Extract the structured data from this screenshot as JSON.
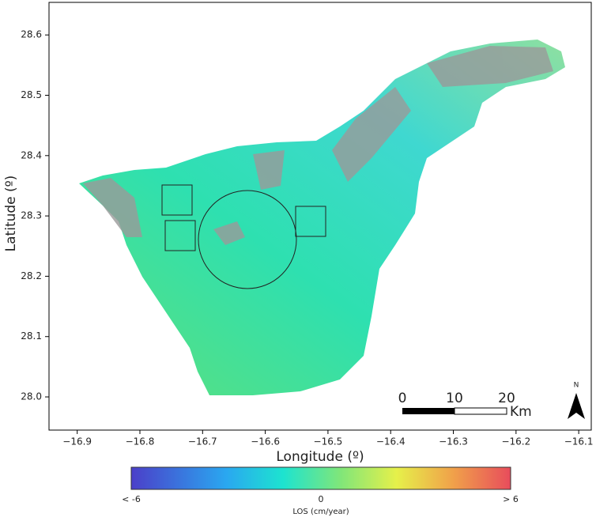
{
  "map": {
    "xlim": [
      -16.945,
      -16.08
    ],
    "ylim": [
      27.945,
      28.654
    ],
    "xticks": [
      {
        "value": -16.9,
        "label": "−16.9"
      },
      {
        "value": -16.8,
        "label": "−16.8"
      },
      {
        "value": -16.7,
        "label": "−16.7"
      },
      {
        "value": -16.6,
        "label": "−16.6"
      },
      {
        "value": -16.5,
        "label": "−16.5"
      },
      {
        "value": -16.4,
        "label": "−16.4"
      },
      {
        "value": -16.3,
        "label": "−16.3"
      },
      {
        "value": -16.2,
        "label": "−16.2"
      },
      {
        "value": -16.1,
        "label": "−16.1"
      }
    ],
    "yticks": [
      {
        "value": 28.0,
        "label": "28.0"
      },
      28.1,
      28.2,
      28.3,
      28.4,
      28.5,
      28.6
    ],
    "xlabel": "Longitude (º)",
    "ylabel": "Latitude (º)"
  },
  "scale_bar": {
    "labels": [
      "0",
      "10",
      "20"
    ],
    "unit": "Km"
  },
  "north_label": "N",
  "colorbar": {
    "labels": [
      "< -6",
      "0",
      "> 6"
    ],
    "title": "LOS (cm/year)"
  }
}
